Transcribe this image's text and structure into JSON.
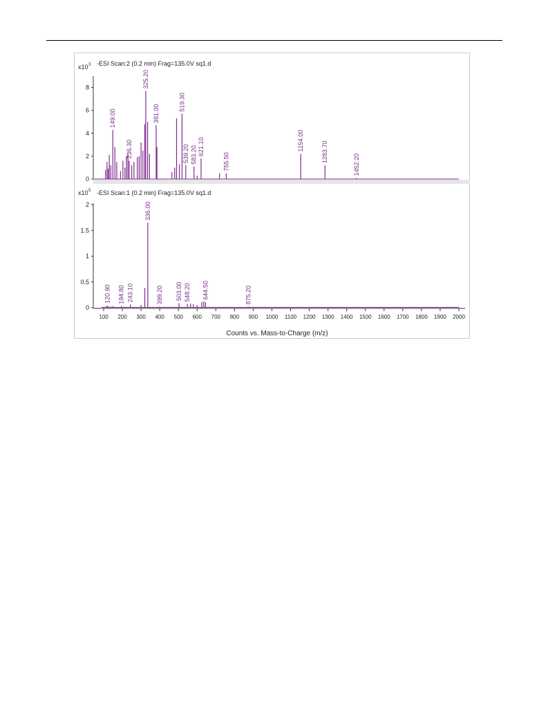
{
  "page": {
    "background": "#ffffff"
  },
  "colors": {
    "peak": "#7a2a8c",
    "label": "#7a2a8c",
    "frame": "#cccccc",
    "divider": "#e6e6e6",
    "axis": "#333333"
  },
  "chart_data": [
    {
      "type": "bar",
      "title": "-ESI Scan:2 (0.2 min) Frag=135.0V sq1.d",
      "y_multiplier": "x10",
      "y_exponent": "3",
      "ylim": [
        0,
        9
      ],
      "yticks": [
        "0",
        "2",
        "4",
        "6",
        "8"
      ],
      "xlim": [
        80,
        2010
      ],
      "series": [
        {
          "peaks": [
            {
              "x": 110,
              "y": 0.8
            },
            {
              "x": 118,
              "y": 1.5
            },
            {
              "x": 124,
              "y": 0.9
            },
            {
              "x": 130,
              "y": 2.1
            },
            {
              "x": 138,
              "y": 1.2
            },
            {
              "x": 149.0,
              "y": 4.3
            },
            {
              "x": 160,
              "y": 2.8
            },
            {
              "x": 170,
              "y": 1.5
            },
            {
              "x": 190,
              "y": 0.7
            },
            {
              "x": 203,
              "y": 1.6
            },
            {
              "x": 214,
              "y": 1.0
            },
            {
              "x": 222,
              "y": 2.0
            },
            {
              "x": 230,
              "y": 2.2
            },
            {
              "x": 236.3,
              "y": 1.6
            },
            {
              "x": 250,
              "y": 1.2
            },
            {
              "x": 262,
              "y": 1.5
            },
            {
              "x": 280,
              "y": 1.9
            },
            {
              "x": 290,
              "y": 2.0
            },
            {
              "x": 300,
              "y": 3.2
            },
            {
              "x": 310,
              "y": 2.5
            },
            {
              "x": 320,
              "y": 4.8
            },
            {
              "x": 325.2,
              "y": 7.7
            },
            {
              "x": 335,
              "y": 5.0
            },
            {
              "x": 345,
              "y": 2.2
            },
            {
              "x": 381.0,
              "y": 4.7
            },
            {
              "x": 385,
              "y": 2.8
            },
            {
              "x": 465,
              "y": 0.6
            },
            {
              "x": 480,
              "y": 1.0
            },
            {
              "x": 490,
              "y": 5.3
            },
            {
              "x": 505,
              "y": 1.3
            },
            {
              "x": 519.3,
              "y": 5.7
            },
            {
              "x": 539.2,
              "y": 1.2
            },
            {
              "x": 583.2,
              "y": 1.1
            },
            {
              "x": 600,
              "y": 0.3
            },
            {
              "x": 621.1,
              "y": 1.8
            },
            {
              "x": 720,
              "y": 0.5
            },
            {
              "x": 755.5,
              "y": 0.5
            },
            {
              "x": 1154.0,
              "y": 2.2
            },
            {
              "x": 1283.7,
              "y": 1.2
            },
            {
              "x": 1452.2,
              "y": 0.1
            }
          ]
        }
      ],
      "annotations": [
        {
          "x": 149.0,
          "text": "149.00"
        },
        {
          "x": 236.3,
          "text": "236.30"
        },
        {
          "x": 325.2,
          "text": "325.20"
        },
        {
          "x": 381.0,
          "text": "381.00"
        },
        {
          "x": 519.3,
          "text": "519.30"
        },
        {
          "x": 539.2,
          "text": "539.20"
        },
        {
          "x": 583.2,
          "text": "583.20"
        },
        {
          "x": 621.1,
          "text": "621.10"
        },
        {
          "x": 755.5,
          "text": "755.50"
        },
        {
          "x": 1154.0,
          "text": "1154.00"
        },
        {
          "x": 1283.7,
          "text": "1283.70"
        },
        {
          "x": 1452.2,
          "text": "1452.20"
        }
      ]
    },
    {
      "type": "bar",
      "title": "-ESI Scan:1 (0.2 min) Frag=135.0V sq1.d",
      "y_multiplier": "x10",
      "y_exponent": "5",
      "ylim": [
        0,
        2
      ],
      "yticks": [
        "0",
        "0.5",
        "1",
        "1.5",
        "2"
      ],
      "xlim": [
        80,
        2010
      ],
      "xticks": [
        "100",
        "200",
        "300",
        "400",
        "500",
        "600",
        "700",
        "800",
        "900",
        "1000",
        "1100",
        "1200",
        "1300",
        "1400",
        "1500",
        "1600",
        "1700",
        "1800",
        "1900",
        "2000"
      ],
      "xlabel": "Counts vs. Mass-to-Charge (m/z)",
      "series": [
        {
          "peaks": [
            {
              "x": 115,
              "y": 0.03
            },
            {
              "x": 120.9,
              "y": 0.04
            },
            {
              "x": 135,
              "y": 0.02
            },
            {
              "x": 150,
              "y": 0.03
            },
            {
              "x": 194.8,
              "y": 0.03
            },
            {
              "x": 210,
              "y": 0.02
            },
            {
              "x": 243.1,
              "y": 0.06
            },
            {
              "x": 300,
              "y": 0.05
            },
            {
              "x": 320,
              "y": 0.38
            },
            {
              "x": 336.0,
              "y": 1.65
            },
            {
              "x": 399.2,
              "y": 0.02
            },
            {
              "x": 503.0,
              "y": 0.09
            },
            {
              "x": 548.2,
              "y": 0.07
            },
            {
              "x": 565,
              "y": 0.08
            },
            {
              "x": 580,
              "y": 0.07
            },
            {
              "x": 600,
              "y": 0.05
            },
            {
              "x": 625,
              "y": 0.11
            },
            {
              "x": 635,
              "y": 0.12
            },
            {
              "x": 644.5,
              "y": 0.11
            },
            {
              "x": 875.2,
              "y": 0.02
            }
          ]
        }
      ],
      "annotations": [
        {
          "x": 120.9,
          "text": "120.90"
        },
        {
          "x": 194.8,
          "text": "194.80"
        },
        {
          "x": 243.1,
          "text": "243.10"
        },
        {
          "x": 336.0,
          "text": "336.00"
        },
        {
          "x": 399.2,
          "text": "399.20"
        },
        {
          "x": 503.0,
          "text": "503.00"
        },
        {
          "x": 548.2,
          "text": "548.20"
        },
        {
          "x": 644.5,
          "text": "644.50"
        },
        {
          "x": 875.2,
          "text": "875.20"
        }
      ]
    }
  ]
}
